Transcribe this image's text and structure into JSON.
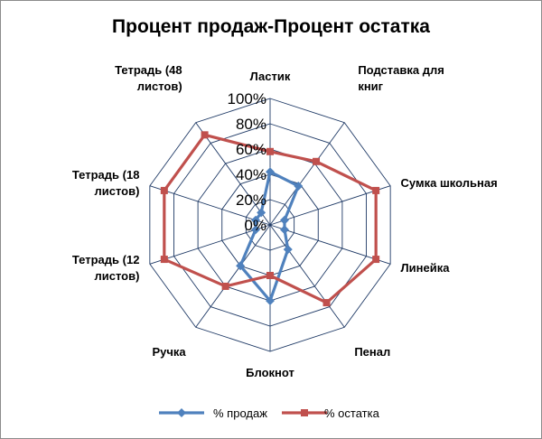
{
  "chart_data": {
    "type": "radar",
    "title": "Процент продаж-Процент остатка",
    "categories": [
      "Ластик",
      "Подставка для книг",
      "Сумка школьная",
      "Линейка",
      "Пенал",
      "Блокнот",
      "Ручка",
      "Тетрадь (12 листов)",
      "Тетрадь (18 листов)",
      "Тетрадь (48 листов)"
    ],
    "category_lines": [
      [
        "Ластик"
      ],
      [
        "Подставка для",
        "книг"
      ],
      [
        "Сумка школьная"
      ],
      [
        "Линейка"
      ],
      [
        "Пенал"
      ],
      [
        "Блокнот"
      ],
      [
        "Ручка"
      ],
      [
        "Тетрадь (12",
        "листов)"
      ],
      [
        "Тетрадь (18",
        "листов)"
      ],
      [
        "Тетрадь (48",
        "листов)"
      ]
    ],
    "tick_labels": [
      "0%",
      "20%",
      "40%",
      "60%",
      "80%",
      "100%"
    ],
    "rmax": 1.0,
    "series": [
      {
        "name": "% продаж",
        "color": "#4f81bd",
        "marker": "diamond",
        "values": [
          0.42,
          0.38,
          0.12,
          0.12,
          0.24,
          0.6,
          0.4,
          0.12,
          0.12,
          0.12
        ]
      },
      {
        "name": "% остатка",
        "color": "#c0504d",
        "marker": "square",
        "values": [
          0.58,
          0.62,
          0.88,
          0.88,
          0.76,
          0.4,
          0.6,
          0.88,
          0.88,
          0.88
        ]
      }
    ],
    "legend": "bottom"
  }
}
